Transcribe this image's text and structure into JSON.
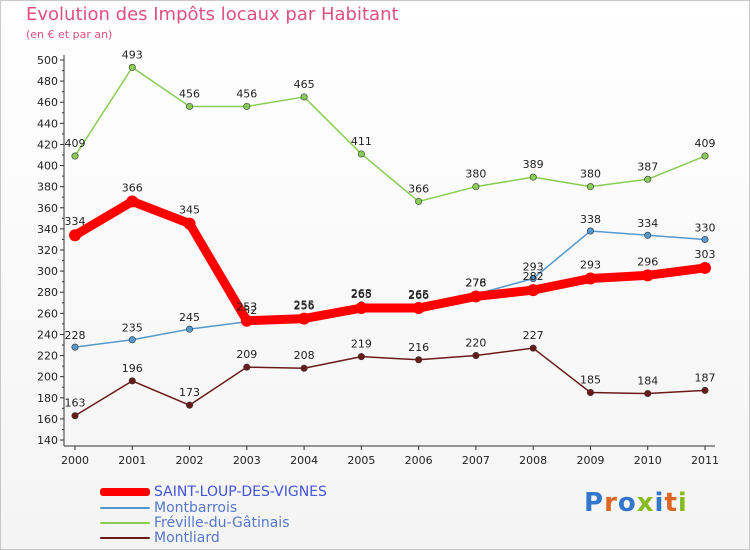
{
  "chart_data": {
    "type": "line",
    "title": "Evolution des Impôts locaux par Habitant",
    "subtitle": "(en € et par an)",
    "categories": [
      "2000",
      "2001",
      "2002",
      "2003",
      "2004",
      "2005",
      "2006",
      "2007",
      "2008",
      "2009",
      "2010",
      "2011"
    ],
    "ylim": [
      140,
      500
    ],
    "yticks": [
      140,
      160,
      180,
      200,
      220,
      240,
      260,
      280,
      300,
      320,
      340,
      360,
      380,
      400,
      420,
      440,
      460,
      480,
      500
    ],
    "grid": false,
    "legend_position": "bottom-left",
    "series": [
      {
        "name": "SAINT-LOUP-DES-VIGNES",
        "color": "#ff0000",
        "values": [
          334,
          366,
          345,
          253,
          255,
          265,
          265,
          276,
          282,
          293,
          296,
          303
        ]
      },
      {
        "name": "Montbarrois",
        "color": "#5599cc",
        "values": [
          228,
          235,
          245,
          252,
          256,
          268,
          266,
          278,
          293,
          338,
          334,
          330
        ]
      },
      {
        "name": "Fréville-du-Gâtinais",
        "color": "#88cc55",
        "values": [
          409,
          493,
          456,
          456,
          465,
          411,
          366,
          380,
          389,
          380,
          387,
          409
        ]
      },
      {
        "name": "Montliard",
        "color": "#6b1a1a",
        "values": [
          163,
          196,
          173,
          209,
          208,
          219,
          216,
          220,
          227,
          185,
          184,
          187
        ]
      }
    ]
  },
  "legend": [
    {
      "label": "SAINT-LOUP-DES-VIGNES",
      "color": "#ff0000"
    },
    {
      "label": "Montbarrois",
      "color": "#5599cc"
    },
    {
      "label": "Fréville-du-Gâtinais",
      "color": "#88cc55"
    },
    {
      "label": "Montliard",
      "color": "#6b1a1a"
    }
  ],
  "brand": {
    "text": "Proxiti"
  }
}
